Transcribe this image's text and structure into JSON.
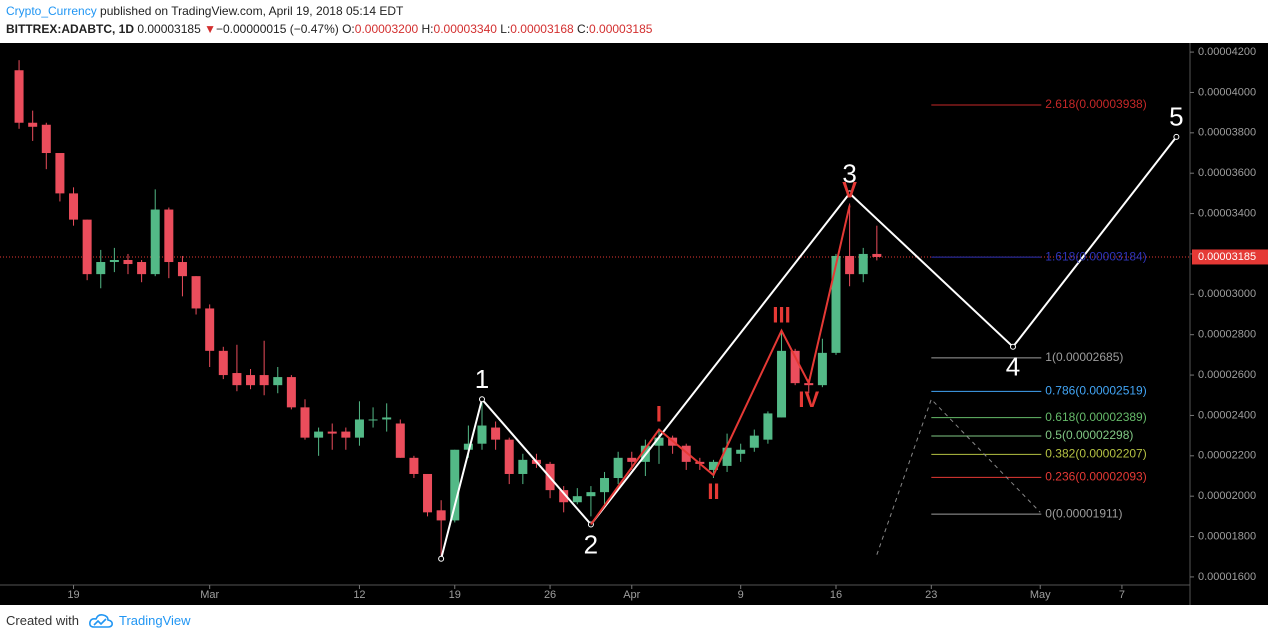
{
  "header": {
    "publisher": "Crypto_Currency",
    "published": "published on TradingView.com, April 19, 2018 05:14 EDT",
    "symbol": "BITTREX:ADABTC, 1D",
    "price": "0.00003185",
    "arrow": "▼",
    "change": "−0.00000015 (−0.47%)",
    "ohlc": [
      [
        "O:",
        "0.00003200"
      ],
      [
        "H:",
        "0.00003340"
      ],
      [
        "L:",
        "0.00003168"
      ],
      [
        "C:",
        "0.00003185"
      ]
    ]
  },
  "chart_data": {
    "type": "candlestick",
    "up_color": "#53b987",
    "down_color": "#eb4d5c",
    "background": "#000000",
    "x": [
      46,
      47,
      48,
      49,
      50,
      51,
      52,
      53,
      54,
      55,
      56,
      57,
      58,
      59,
      60,
      61,
      62,
      63,
      64,
      65,
      66,
      67,
      68,
      69,
      70,
      71,
      72,
      73,
      74,
      75,
      76,
      77,
      78,
      79,
      80,
      81,
      82,
      83,
      84,
      85,
      86,
      87,
      88,
      89,
      90,
      91,
      92,
      93,
      94,
      95,
      96,
      97,
      98,
      99,
      100,
      101,
      102,
      103,
      104,
      105,
      106,
      107,
      108,
      109
    ],
    "open": [
      4.11e-05,
      3.85e-05,
      3.84e-05,
      3.7e-05,
      3.5e-05,
      3.37e-05,
      3.1e-05,
      3.16e-05,
      3.17e-05,
      3.16e-05,
      3.1e-05,
      3.42e-05,
      3.16e-05,
      3.09e-05,
      2.93e-05,
      2.72e-05,
      2.61e-05,
      2.6e-05,
      2.6e-05,
      2.55e-05,
      2.59e-05,
      2.44e-05,
      2.29e-05,
      2.32e-05,
      2.32e-05,
      2.29e-05,
      2.38e-05,
      2.38e-05,
      2.36e-05,
      2.19e-05,
      2.11e-05,
      1.93e-05,
      1.88e-05,
      2.23e-05,
      2.26e-05,
      2.34e-05,
      2.28e-05,
      2.11e-05,
      2.18e-05,
      2.16e-05,
      2.03e-05,
      1.97e-05,
      2e-05,
      2.02e-05,
      2.09e-05,
      2.19e-05,
      2.17e-05,
      2.25e-05,
      2.29e-05,
      2.25e-05,
      2.17e-05,
      2.13e-05,
      2.15e-05,
      2.21e-05,
      2.24e-05,
      2.28e-05,
      2.39e-05,
      2.72e-05,
      2.56e-05,
      2.55e-05,
      2.71e-05,
      3.19e-05,
      3.1e-05,
      3.2e-05
    ],
    "high": [
      4.16e-05,
      3.91e-05,
      3.85e-05,
      3.7e-05,
      3.53e-05,
      3.37e-05,
      3.22e-05,
      3.23e-05,
      3.2e-05,
      3.17e-05,
      3.52e-05,
      3.43e-05,
      3.19e-05,
      3.09e-05,
      2.95e-05,
      2.74e-05,
      2.75e-05,
      2.63e-05,
      2.77e-05,
      2.64e-05,
      2.6e-05,
      2.48e-05,
      2.34e-05,
      2.36e-05,
      2.34e-05,
      2.47e-05,
      2.44e-05,
      2.46e-05,
      2.38e-05,
      2.2e-05,
      2.11e-05,
      1.98e-05,
      2.23e-05,
      2.35e-05,
      2.48e-05,
      2.37e-05,
      2.29e-05,
      2.21e-05,
      2.21e-05,
      2.17e-05,
      2.05e-05,
      2.04e-05,
      2.05e-05,
      2.12e-05,
      2.22e-05,
      2.22e-05,
      2.28e-05,
      2.33e-05,
      2.3e-05,
      2.26e-05,
      2.19e-05,
      2.18e-05,
      2.31e-05,
      2.26e-05,
      2.33e-05,
      2.42e-05,
      2.82e-05,
      2.73e-05,
      2.58e-05,
      2.78e-05,
      3.2e-05,
      3.45e-05,
      3.23e-05,
      3.34e-05
    ],
    "low": [
      3.82e-05,
      3.76e-05,
      3.62e-05,
      3.46e-05,
      3.34e-05,
      3.07e-05,
      3.03e-05,
      3.11e-05,
      3.1e-05,
      3.06e-05,
      3.09e-05,
      3.08e-05,
      2.99e-05,
      2.9e-05,
      2.64e-05,
      2.58e-05,
      2.52e-05,
      2.53e-05,
      2.5e-05,
      2.51e-05,
      2.43e-05,
      2.28e-05,
      2.2e-05,
      2.23e-05,
      2.23e-05,
      2.25e-05,
      2.34e-05,
      2.32e-05,
      2.19e-05,
      2.09e-05,
      1.9e-05,
      1.69e-05,
      1.87e-05,
      2.19e-05,
      2.23e-05,
      2.23e-05,
      2.06e-05,
      2.06e-05,
      2.14e-05,
      1.99e-05,
      1.92e-05,
      1.96e-05,
      1.9e-05,
      1.96e-05,
      2.06e-05,
      2.13e-05,
      2.1e-05,
      2.16e-05,
      2.21e-05,
      2.13e-05,
      2.13e-05,
      2.09e-05,
      2.12e-05,
      2.17e-05,
      2.22e-05,
      2.26e-05,
      2.39e-05,
      2.55e-05,
      2.51e-05,
      2.54e-05,
      2.7e-05,
      3.04e-05,
      3.06e-05,
      3.168e-05
    ],
    "close": [
      3.85e-05,
      3.83e-05,
      3.7e-05,
      3.5e-05,
      3.37e-05,
      3.1e-05,
      3.16e-05,
      3.17e-05,
      3.15e-05,
      3.1e-05,
      3.42e-05,
      3.16e-05,
      3.09e-05,
      2.93e-05,
      2.72e-05,
      2.6e-05,
      2.55e-05,
      2.55e-05,
      2.55e-05,
      2.59e-05,
      2.44e-05,
      2.29e-05,
      2.32e-05,
      2.31e-05,
      2.29e-05,
      2.38e-05,
      2.38e-05,
      2.39e-05,
      2.19e-05,
      2.11e-05,
      1.92e-05,
      1.88e-05,
      2.23e-05,
      2.26e-05,
      2.35e-05,
      2.28e-05,
      2.11e-05,
      2.18e-05,
      2.16e-05,
      2.03e-05,
      1.97e-05,
      2e-05,
      2.02e-05,
      2.09e-05,
      2.19e-05,
      2.17e-05,
      2.25e-05,
      2.29e-05,
      2.25e-05,
      2.17e-05,
      2.16e-05,
      2.17e-05,
      2.24e-05,
      2.23e-05,
      2.3e-05,
      2.41e-05,
      2.72e-05,
      2.56e-05,
      2.55e-05,
      2.71e-05,
      3.19e-05,
      3.1e-05,
      3.2e-05,
      3.185e-05
    ],
    "xlim": [
      44.6,
      132
    ],
    "xticks": [
      {
        "value": 50,
        "label": "19"
      },
      {
        "value": 60,
        "label": "Mar"
      },
      {
        "value": 71,
        "label": "12"
      },
      {
        "value": 78,
        "label": "19"
      },
      {
        "value": 85,
        "label": "26"
      },
      {
        "value": 91,
        "label": "Apr"
      },
      {
        "value": 99,
        "label": "9"
      },
      {
        "value": 106,
        "label": "16"
      },
      {
        "value": 113,
        "label": "23"
      },
      {
        "value": 121,
        "label": "May"
      },
      {
        "value": 127,
        "label": "7"
      }
    ],
    "ylim": [
      1.56e-05,
      4.245e-05
    ],
    "yticks": [
      {
        "value": 1.6e-05,
        "label": "0.00001600"
      },
      {
        "value": 1.8e-05,
        "label": "0.00001800"
      },
      {
        "value": 2e-05,
        "label": "0.00002000"
      },
      {
        "value": 2.2e-05,
        "label": "0.00002200"
      },
      {
        "value": 2.4e-05,
        "label": "0.00002400"
      },
      {
        "value": 2.6e-05,
        "label": "0.00002600"
      },
      {
        "value": 2.8e-05,
        "label": "0.00002800"
      },
      {
        "value": 3e-05,
        "label": "0.00003000"
      },
      {
        "value": 3.2e-05,
        "label": "0.00003200"
      },
      {
        "value": 3.4e-05,
        "label": "0.00003400"
      },
      {
        "value": 3.6e-05,
        "label": "0.00003600"
      },
      {
        "value": 3.8e-05,
        "label": "0.00003800"
      },
      {
        "value": 4e-05,
        "label": "0.00004000"
      },
      {
        "value": 4.2e-05,
        "label": "0.00004200"
      }
    ],
    "last_price": 3.185e-05,
    "last_price_color": "#e53935",
    "waves": [
      {
        "color": "#ffffff",
        "x": [
          77,
          80,
          88,
          107,
          119,
          131
        ],
        "values": [
          1.69e-05,
          2.48e-05,
          1.86e-05,
          3.5e-05,
          2.74e-05,
          3.78e-05
        ],
        "labels": [
          null,
          "1",
          "2",
          "3",
          "4",
          "5"
        ]
      },
      {
        "color": "#e53935",
        "x": [
          88,
          93,
          97,
          102,
          104,
          107
        ],
        "values": [
          1.86e-05,
          2.33e-05,
          2.105e-05,
          2.82e-05,
          2.56e-05,
          3.44e-05
        ],
        "labels": [
          null,
          "I",
          "II",
          "III",
          "IV",
          "V"
        ]
      },
      {
        "color": "#888888",
        "dashed": true,
        "x": [
          109,
          113,
          121
        ],
        "values": [
          1.71e-05,
          2.48e-05,
          1.92e-05
        ]
      }
    ],
    "fib": {
      "x": 113,
      "levels": [
        {
          "label": "2.618(0.00003938)",
          "value": 3.938e-05,
          "color": "#c62828"
        },
        {
          "label": "1.618(0.00003184)",
          "value": 3.184e-05,
          "color": "#3034b8"
        },
        {
          "label": "1(0.00002685)",
          "value": 2.685e-05,
          "color": "#9e9e9e"
        },
        {
          "label": "0.786(0.00002519)",
          "value": 2.519e-05,
          "color": "#42a5f5"
        },
        {
          "label": "0.618(0.00002389)",
          "value": 2.389e-05,
          "color": "#66bb6a"
        },
        {
          "label": "0.5(0.00002298)",
          "value": 2.298e-05,
          "color": "#81c784"
        },
        {
          "label": "0.382(0.00002207)",
          "value": 2.207e-05,
          "color": "#b5c243"
        },
        {
          "label": "0.236(0.00002093)",
          "value": 2.093e-05,
          "color": "#e53935"
        },
        {
          "label": "0(0.00001911)",
          "value": 1.911e-05,
          "color": "#9e9e9e"
        }
      ]
    }
  },
  "footer": {
    "created": "Created with",
    "brand": "TradingView"
  }
}
